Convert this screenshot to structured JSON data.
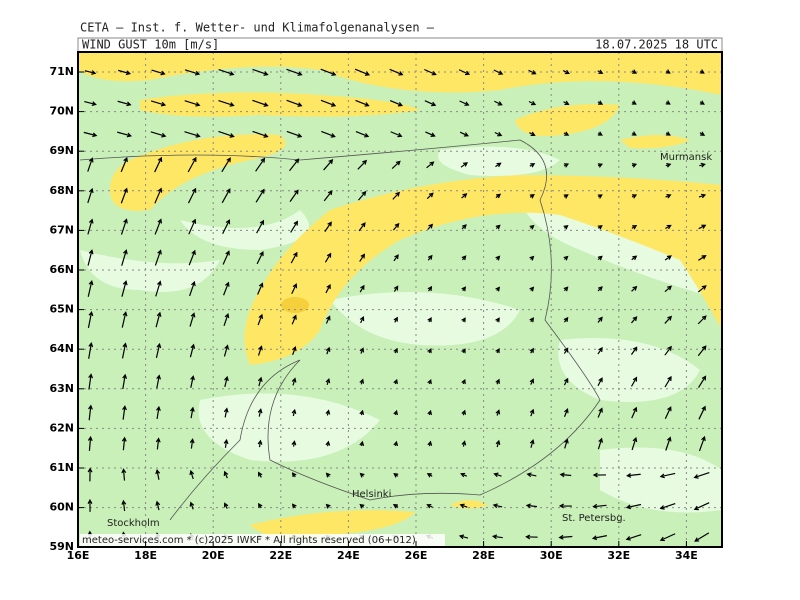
{
  "header": {
    "source": "CETA — Inst. f. Wetter- und Klimafolgenanalysen —",
    "parameter": "WIND_GUST_10m [m/s]",
    "valid_time": "18.07.2025 18 UTC"
  },
  "axes": {
    "latitude_labels": [
      "71N",
      "70N",
      "69N",
      "68N",
      "67N",
      "66N",
      "65N",
      "64N",
      "63N",
      "62N",
      "61N",
      "60N",
      "59N"
    ],
    "longitude_labels": [
      "16E",
      "18E",
      "20E",
      "22E",
      "24E",
      "26E",
      "28E",
      "30E",
      "32E",
      "34E"
    ]
  },
  "places": [
    "Murmansk",
    "Helsinki",
    "Stockholm",
    "St. Petersbg."
  ],
  "footer": "meteo-services.com * (c)2025 IWKF * All rights reserved (06+012)"
}
